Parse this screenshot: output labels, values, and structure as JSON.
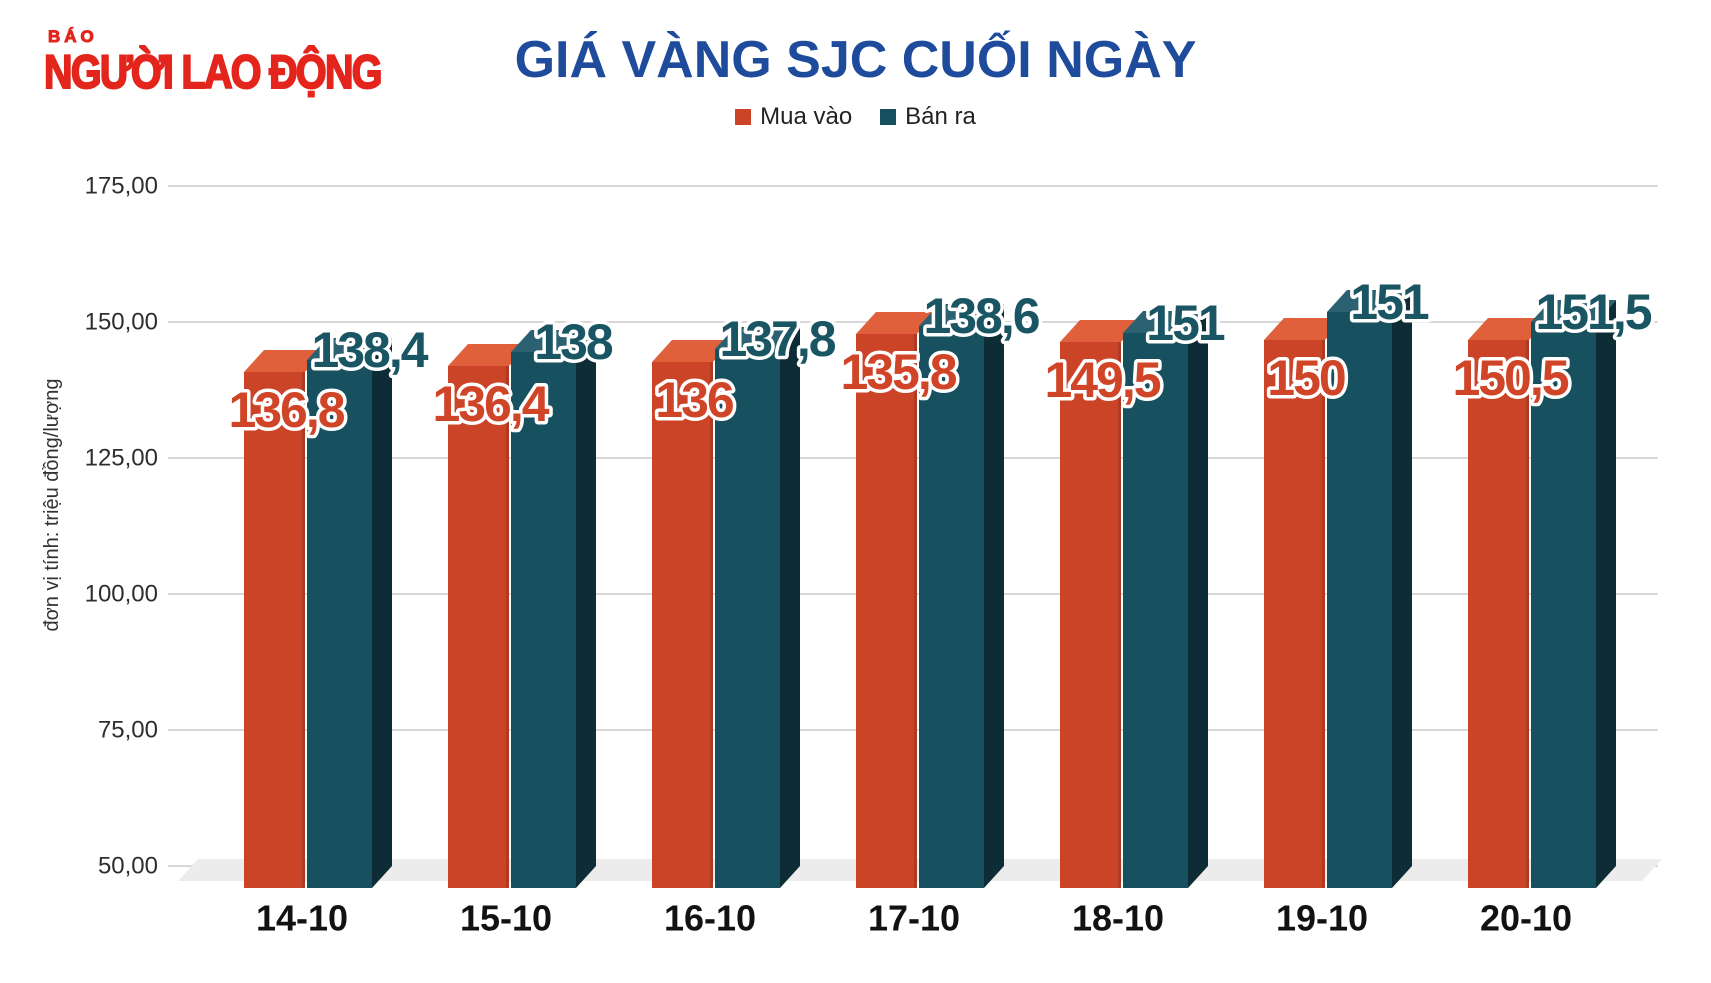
{
  "header": {
    "logo_small": "BÁO",
    "logo_main": "NGƯỜI LAO ĐỘNG",
    "title": "GIÁ VÀNG SJC CUỐI NGÀY"
  },
  "legend": [
    {
      "label": "Mua vào",
      "color": "#CC4428"
    },
    {
      "label": "Bán ra",
      "color": "#17505F"
    }
  ],
  "axis": {
    "unit_label": "đơn vị tính: triệu đồng/lượng",
    "yticks": [
      "175,00",
      "150,00",
      "125,00",
      "100,00",
      "75,00",
      "50,00"
    ]
  },
  "chart_data": {
    "type": "bar",
    "title": "GIÁ VÀNG SJC CUỐI NGÀY",
    "categories": [
      "14-10",
      "15-10",
      "16-10",
      "17-10",
      "18-10",
      "19-10",
      "20-10"
    ],
    "series": [
      {
        "name": "Mua vào",
        "color": "#CC4428",
        "values": [
          136.8,
          136.4,
          136.0,
          135.8,
          149.5,
          150.0,
          150.5
        ],
        "labels": [
          "136,8",
          "136,4",
          "136",
          "135,8",
          "149,5",
          "150",
          "150,5"
        ]
      },
      {
        "name": "Bán ra",
        "color": "#17505F",
        "values": [
          138.4,
          138.0,
          137.8,
          138.6,
          151.0,
          151.0,
          151.5
        ],
        "labels": [
          "138,4",
          "138",
          "137,8",
          "138,6",
          "151",
          "151",
          "151,5"
        ]
      }
    ],
    "ylabel": "đơn vị tính: triệu đồng/lượng",
    "xlabel": "",
    "ylim": [
      50,
      175
    ],
    "ytick_values": [
      175,
      150,
      125,
      100,
      75,
      50
    ],
    "grid": true,
    "legend_position": "top",
    "style_note": "3D oblique bars; bar heights in the source graphic are not drawn to scale with values"
  },
  "colors": {
    "buy": "#CC4428",
    "buy_top": "#E0603B",
    "buy_edge": "#AE3B21",
    "sell": "#17505F",
    "sell_top": "#2B6170",
    "sell_side": "#0D2C35",
    "buy_label": "#D04528",
    "sell_label": "#1A5564",
    "label_outline": "#FFFFFF",
    "grid": "#D8D8D8",
    "floor": "#ECECEC",
    "title": "#1E4B9B",
    "logo": "#E4251C",
    "axis_text": "#2E2E2E",
    "x_label": "#121212"
  }
}
